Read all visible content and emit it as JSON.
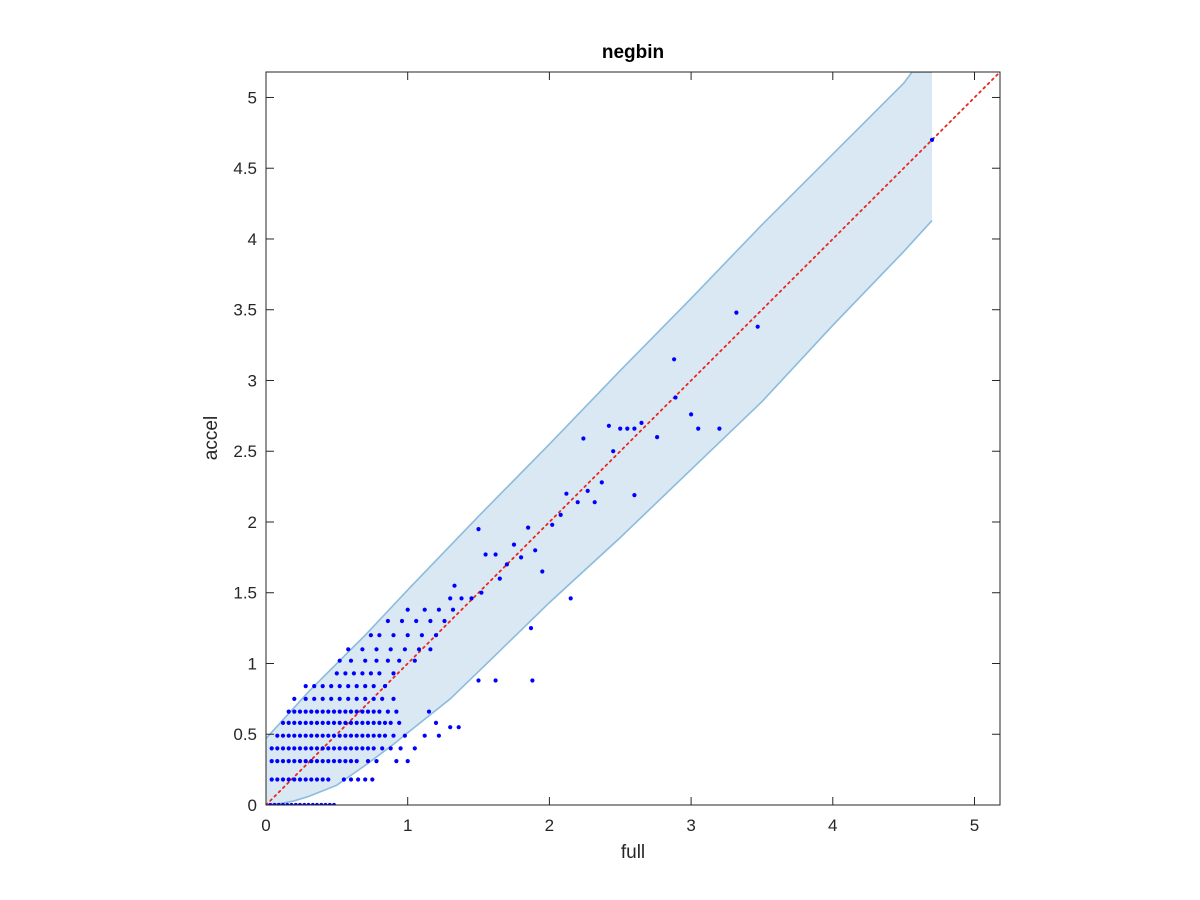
{
  "chart_data": {
    "type": "scatter",
    "title": "negbin",
    "xlabel": "full",
    "ylabel": "accel",
    "xlim": [
      0,
      5.18
    ],
    "ylim": [
      0,
      5.18
    ],
    "xticks": [
      "0",
      "1",
      "2",
      "3",
      "4",
      "5"
    ],
    "yticks": [
      "0",
      "0.5",
      "1",
      "1.5",
      "2",
      "2.5",
      "3",
      "3.5",
      "4",
      "4.5",
      "5"
    ],
    "grid": false,
    "colors": {
      "points": "#0000ff",
      "band_fill": "#d9e8f3",
      "band_edge": "#8bbcdc",
      "reference_line": "#e8281e",
      "axis": "#262626"
    },
    "reference_line": {
      "style": "dotted",
      "from": [
        0,
        0
      ],
      "to": [
        5.18,
        5.18
      ]
    },
    "band": {
      "upper": [
        [
          0,
          0.47
        ],
        [
          0.1,
          0.58
        ],
        [
          0.2,
          0.69
        ],
        [
          0.3,
          0.8
        ],
        [
          0.5,
          1.0
        ],
        [
          0.7,
          1.2
        ],
        [
          1.0,
          1.52
        ],
        [
          1.5,
          2.04
        ],
        [
          2.0,
          2.55
        ],
        [
          2.5,
          3.07
        ],
        [
          3.0,
          3.58
        ],
        [
          3.5,
          4.1
        ],
        [
          4.0,
          4.6
        ],
        [
          4.5,
          5.1
        ],
        [
          4.56,
          5.18
        ],
        [
          4.7,
          5.18
        ]
      ],
      "lower": [
        [
          0,
          0.0
        ],
        [
          0.1,
          0.01
        ],
        [
          0.2,
          0.03
        ],
        [
          0.3,
          0.06
        ],
        [
          0.5,
          0.14
        ],
        [
          0.7,
          0.28
        ],
        [
          0.9,
          0.43
        ],
        [
          1.0,
          0.51
        ],
        [
          1.3,
          0.75
        ],
        [
          1.6,
          1.04
        ],
        [
          2.0,
          1.43
        ],
        [
          2.5,
          1.89
        ],
        [
          3.0,
          2.37
        ],
        [
          3.5,
          2.85
        ],
        [
          4.0,
          3.39
        ],
        [
          4.5,
          3.91
        ],
        [
          4.7,
          4.13
        ]
      ]
    },
    "series": [
      {
        "points": [
          [
            0.03,
            0.0
          ],
          [
            0.06,
            0.0
          ],
          [
            0.09,
            0.0
          ],
          [
            0.12,
            0.0
          ],
          [
            0.15,
            0.0
          ],
          [
            0.18,
            0.0
          ],
          [
            0.21,
            0.0
          ],
          [
            0.24,
            0.0
          ],
          [
            0.27,
            0.0
          ],
          [
            0.3,
            0.0
          ],
          [
            0.33,
            0.0
          ],
          [
            0.36,
            0.0
          ],
          [
            0.39,
            0.0
          ],
          [
            0.42,
            0.0
          ],
          [
            0.45,
            0.0
          ],
          [
            0.48,
            0.0
          ],
          [
            0.04,
            0.18
          ],
          [
            0.08,
            0.18
          ],
          [
            0.12,
            0.18
          ],
          [
            0.16,
            0.18
          ],
          [
            0.2,
            0.18
          ],
          [
            0.24,
            0.18
          ],
          [
            0.28,
            0.18
          ],
          [
            0.32,
            0.18
          ],
          [
            0.36,
            0.18
          ],
          [
            0.4,
            0.18
          ],
          [
            0.44,
            0.18
          ],
          [
            0.55,
            0.18
          ],
          [
            0.6,
            0.18
          ],
          [
            0.65,
            0.18
          ],
          [
            0.7,
            0.18
          ],
          [
            0.75,
            0.18
          ],
          [
            0.04,
            0.31
          ],
          [
            0.08,
            0.31
          ],
          [
            0.12,
            0.31
          ],
          [
            0.16,
            0.31
          ],
          [
            0.2,
            0.31
          ],
          [
            0.24,
            0.31
          ],
          [
            0.28,
            0.31
          ],
          [
            0.32,
            0.31
          ],
          [
            0.36,
            0.31
          ],
          [
            0.4,
            0.31
          ],
          [
            0.44,
            0.31
          ],
          [
            0.48,
            0.31
          ],
          [
            0.52,
            0.31
          ],
          [
            0.56,
            0.31
          ],
          [
            0.6,
            0.31
          ],
          [
            0.64,
            0.31
          ],
          [
            0.72,
            0.31
          ],
          [
            0.78,
            0.31
          ],
          [
            0.04,
            0.4
          ],
          [
            0.08,
            0.4
          ],
          [
            0.12,
            0.4
          ],
          [
            0.16,
            0.4
          ],
          [
            0.2,
            0.4
          ],
          [
            0.24,
            0.4
          ],
          [
            0.28,
            0.4
          ],
          [
            0.32,
            0.4
          ],
          [
            0.36,
            0.4
          ],
          [
            0.4,
            0.4
          ],
          [
            0.44,
            0.4
          ],
          [
            0.48,
            0.4
          ],
          [
            0.52,
            0.4
          ],
          [
            0.56,
            0.4
          ],
          [
            0.6,
            0.4
          ],
          [
            0.64,
            0.4
          ],
          [
            0.68,
            0.4
          ],
          [
            0.72,
            0.4
          ],
          [
            0.76,
            0.4
          ],
          [
            0.82,
            0.4
          ],
          [
            0.88,
            0.4
          ],
          [
            0.95,
            0.4
          ],
          [
            0.08,
            0.49
          ],
          [
            0.12,
            0.49
          ],
          [
            0.16,
            0.49
          ],
          [
            0.2,
            0.49
          ],
          [
            0.24,
            0.49
          ],
          [
            0.28,
            0.49
          ],
          [
            0.32,
            0.49
          ],
          [
            0.36,
            0.49
          ],
          [
            0.4,
            0.49
          ],
          [
            0.44,
            0.49
          ],
          [
            0.48,
            0.49
          ],
          [
            0.52,
            0.49
          ],
          [
            0.56,
            0.49
          ],
          [
            0.6,
            0.49
          ],
          [
            0.64,
            0.49
          ],
          [
            0.68,
            0.49
          ],
          [
            0.72,
            0.49
          ],
          [
            0.76,
            0.49
          ],
          [
            0.8,
            0.49
          ],
          [
            0.84,
            0.49
          ],
          [
            0.9,
            0.49
          ],
          [
            0.98,
            0.49
          ],
          [
            0.12,
            0.58
          ],
          [
            0.16,
            0.58
          ],
          [
            0.2,
            0.58
          ],
          [
            0.24,
            0.58
          ],
          [
            0.28,
            0.58
          ],
          [
            0.32,
            0.58
          ],
          [
            0.36,
            0.58
          ],
          [
            0.4,
            0.58
          ],
          [
            0.44,
            0.58
          ],
          [
            0.48,
            0.58
          ],
          [
            0.52,
            0.58
          ],
          [
            0.56,
            0.58
          ],
          [
            0.6,
            0.58
          ],
          [
            0.64,
            0.58
          ],
          [
            0.68,
            0.58
          ],
          [
            0.72,
            0.58
          ],
          [
            0.76,
            0.58
          ],
          [
            0.8,
            0.58
          ],
          [
            0.84,
            0.58
          ],
          [
            0.88,
            0.58
          ],
          [
            0.94,
            0.58
          ],
          [
            0.16,
            0.66
          ],
          [
            0.2,
            0.66
          ],
          [
            0.24,
            0.66
          ],
          [
            0.28,
            0.66
          ],
          [
            0.32,
            0.66
          ],
          [
            0.36,
            0.66
          ],
          [
            0.4,
            0.66
          ],
          [
            0.44,
            0.66
          ],
          [
            0.48,
            0.66
          ],
          [
            0.52,
            0.66
          ],
          [
            0.56,
            0.66
          ],
          [
            0.6,
            0.66
          ],
          [
            0.64,
            0.66
          ],
          [
            0.68,
            0.66
          ],
          [
            0.72,
            0.66
          ],
          [
            0.76,
            0.66
          ],
          [
            0.8,
            0.66
          ],
          [
            0.86,
            0.66
          ],
          [
            0.92,
            0.66
          ],
          [
            0.2,
            0.75
          ],
          [
            0.28,
            0.75
          ],
          [
            0.34,
            0.75
          ],
          [
            0.4,
            0.75
          ],
          [
            0.46,
            0.75
          ],
          [
            0.52,
            0.75
          ],
          [
            0.58,
            0.75
          ],
          [
            0.64,
            0.75
          ],
          [
            0.7,
            0.75
          ],
          [
            0.76,
            0.75
          ],
          [
            0.82,
            0.75
          ],
          [
            0.9,
            0.75
          ],
          [
            0.28,
            0.84
          ],
          [
            0.34,
            0.84
          ],
          [
            0.4,
            0.84
          ],
          [
            0.46,
            0.84
          ],
          [
            0.52,
            0.84
          ],
          [
            0.58,
            0.84
          ],
          [
            0.64,
            0.84
          ],
          [
            0.7,
            0.84
          ],
          [
            0.76,
            0.84
          ],
          [
            0.84,
            0.84
          ],
          [
            0.5,
            0.93
          ],
          [
            0.56,
            0.93
          ],
          [
            0.62,
            0.93
          ],
          [
            0.68,
            0.93
          ],
          [
            0.74,
            0.93
          ],
          [
            0.8,
            0.93
          ],
          [
            0.9,
            0.93
          ],
          [
            0.52,
            1.02
          ],
          [
            0.6,
            1.02
          ],
          [
            0.7,
            1.02
          ],
          [
            0.78,
            1.02
          ],
          [
            0.86,
            1.02
          ],
          [
            0.94,
            1.02
          ],
          [
            1.05,
            1.02
          ],
          [
            0.58,
            1.1
          ],
          [
            0.68,
            1.1
          ],
          [
            0.78,
            1.1
          ],
          [
            0.88,
            1.1
          ],
          [
            0.98,
            1.1
          ],
          [
            1.08,
            1.1
          ],
          [
            1.16,
            1.1
          ],
          [
            0.74,
            1.2
          ],
          [
            0.8,
            1.2
          ],
          [
            0.9,
            1.2
          ],
          [
            1.0,
            1.2
          ],
          [
            1.1,
            1.2
          ],
          [
            1.2,
            1.2
          ],
          [
            0.86,
            1.3
          ],
          [
            0.96,
            1.3
          ],
          [
            1.06,
            1.3
          ],
          [
            1.16,
            1.3
          ],
          [
            1.26,
            1.3
          ],
          [
            1.0,
            1.38
          ],
          [
            1.12,
            1.38
          ],
          [
            1.22,
            1.38
          ],
          [
            1.32,
            1.38
          ],
          [
            1.3,
            1.46
          ],
          [
            1.38,
            1.46
          ],
          [
            1.45,
            1.46
          ],
          [
            1.33,
            1.55
          ],
          [
            1.52,
            1.5
          ],
          [
            1.5,
            1.95
          ],
          [
            1.55,
            1.77
          ],
          [
            1.62,
            1.77
          ],
          [
            1.65,
            1.6
          ],
          [
            1.7,
            1.7
          ],
          [
            1.75,
            1.84
          ],
          [
            1.8,
            1.75
          ],
          [
            1.85,
            1.96
          ],
          [
            1.9,
            1.8
          ],
          [
            1.95,
            1.65
          ],
          [
            2.02,
            1.98
          ],
          [
            2.08,
            2.05
          ],
          [
            2.12,
            2.2
          ],
          [
            2.2,
            2.14
          ],
          [
            2.27,
            2.22
          ],
          [
            2.32,
            2.14
          ],
          [
            2.37,
            2.28
          ],
          [
            2.24,
            2.59
          ],
          [
            2.45,
            2.5
          ],
          [
            2.5,
            2.66
          ],
          [
            2.55,
            2.66
          ],
          [
            2.6,
            2.66
          ],
          [
            2.65,
            2.7
          ],
          [
            2.42,
            2.68
          ],
          [
            2.76,
            2.6
          ],
          [
            2.89,
            2.88
          ],
          [
            3.0,
            2.76
          ],
          [
            3.05,
            2.66
          ],
          [
            2.88,
            3.15
          ],
          [
            3.32,
            3.48
          ],
          [
            3.47,
            3.38
          ],
          [
            3.2,
            2.66
          ],
          [
            2.6,
            2.19
          ],
          [
            2.15,
            1.46
          ],
          [
            1.87,
            1.25
          ],
          [
            1.88,
            0.88
          ],
          [
            1.5,
            0.88
          ],
          [
            1.62,
            0.88
          ],
          [
            1.15,
            0.66
          ],
          [
            1.2,
            0.58
          ],
          [
            1.3,
            0.55
          ],
          [
            1.36,
            0.55
          ],
          [
            1.22,
            0.49
          ],
          [
            1.12,
            0.49
          ],
          [
            1.05,
            0.4
          ],
          [
            1.0,
            0.31
          ],
          [
            0.92,
            0.31
          ],
          [
            4.7,
            4.7
          ]
        ]
      }
    ]
  }
}
